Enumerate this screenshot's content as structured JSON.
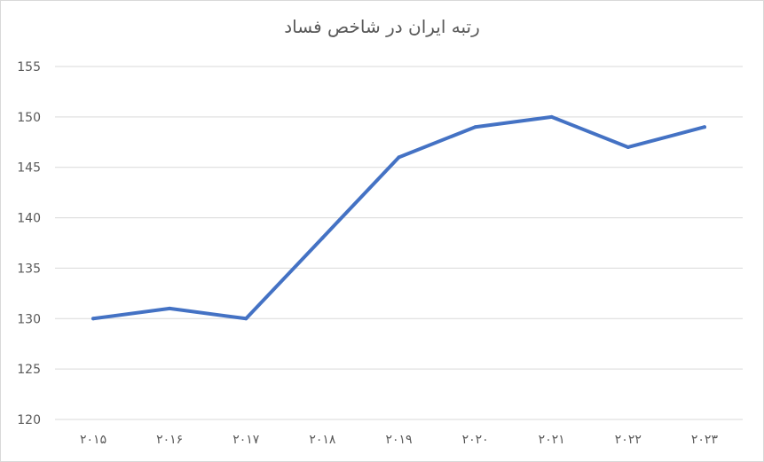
{
  "chart_data": {
    "type": "line",
    "title": "رتبه ایران در شاخص فساد",
    "categories": [
      "۲۰۱۵",
      "۲۰۱۶",
      "۲۰۱۷",
      "۲۰۱۸",
      "۲۰۱۹",
      "۲۰۲۰",
      "۲۰۲۱",
      "۲۰۲۲",
      "۲۰۲۳"
    ],
    "series": [
      {
        "values": [
          130,
          131,
          130,
          138,
          146,
          149,
          150,
          147,
          149
        ]
      }
    ],
    "y_ticks": [
      "120",
      "125",
      "130",
      "135",
      "140",
      "145",
      "150",
      "155"
    ],
    "ylim": [
      120,
      155
    ],
    "grid": true,
    "legend": "none",
    "line_color": "#4472c4",
    "grid_color": "#d9d9d9",
    "text_color": "#595959"
  }
}
